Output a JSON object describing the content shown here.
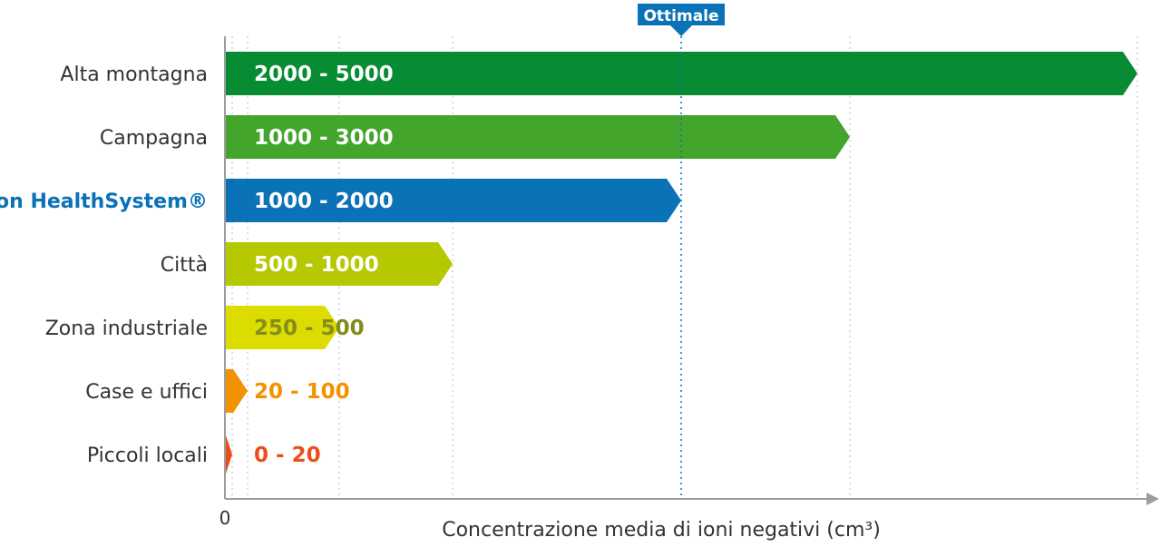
{
  "chart_data": {
    "type": "bar",
    "orientation": "horizontal",
    "title": "",
    "xlabel": "Concentrazione media di ioni negativi (cm³)",
    "ylabel": "",
    "x_tick_labels": [
      "0"
    ],
    "xlim": [
      0,
      5000
    ],
    "grid": "vertical dotted",
    "marker": {
      "label": "Ottimale",
      "value": 2000
    },
    "categories": [
      "Alta montagna",
      "Campagna",
      "con HealthSystem®",
      "Città",
      "Zona industriale",
      "Case e uffici",
      "Piccoli locali"
    ],
    "ranges": [
      {
        "label": "2000 - 5000",
        "min": 2000,
        "max": 5000,
        "color": "#078c33"
      },
      {
        "label": "1000 - 3000",
        "min": 1000,
        "max": 3000,
        "color": "#43a52c"
      },
      {
        "label": "1000 - 2000",
        "min": 1000,
        "max": 2000,
        "color": "#0a72b6"
      },
      {
        "label": "500 - 1000",
        "min": 500,
        "max": 1000,
        "color": "#b5c800"
      },
      {
        "label": "250 - 500",
        "min": 250,
        "max": 500,
        "color": "#dcdc00"
      },
      {
        "label": "20 - 100",
        "min": 20,
        "max": 100,
        "color": "#f39200"
      },
      {
        "label": "0 - 20",
        "min": 0,
        "max": 20,
        "color": "#e94e1b"
      }
    ],
    "category_label_colors": [
      "#333333",
      "#333333",
      "#0a72b6",
      "#333333",
      "#333333",
      "#333333",
      "#333333"
    ],
    "value_label_colors": [
      "#ffffff",
      "#ffffff",
      "#ffffff",
      "#ffffff",
      "#848d1c",
      "#f39200",
      "#e94e1b"
    ],
    "axis_color": "#9d9d9d"
  }
}
